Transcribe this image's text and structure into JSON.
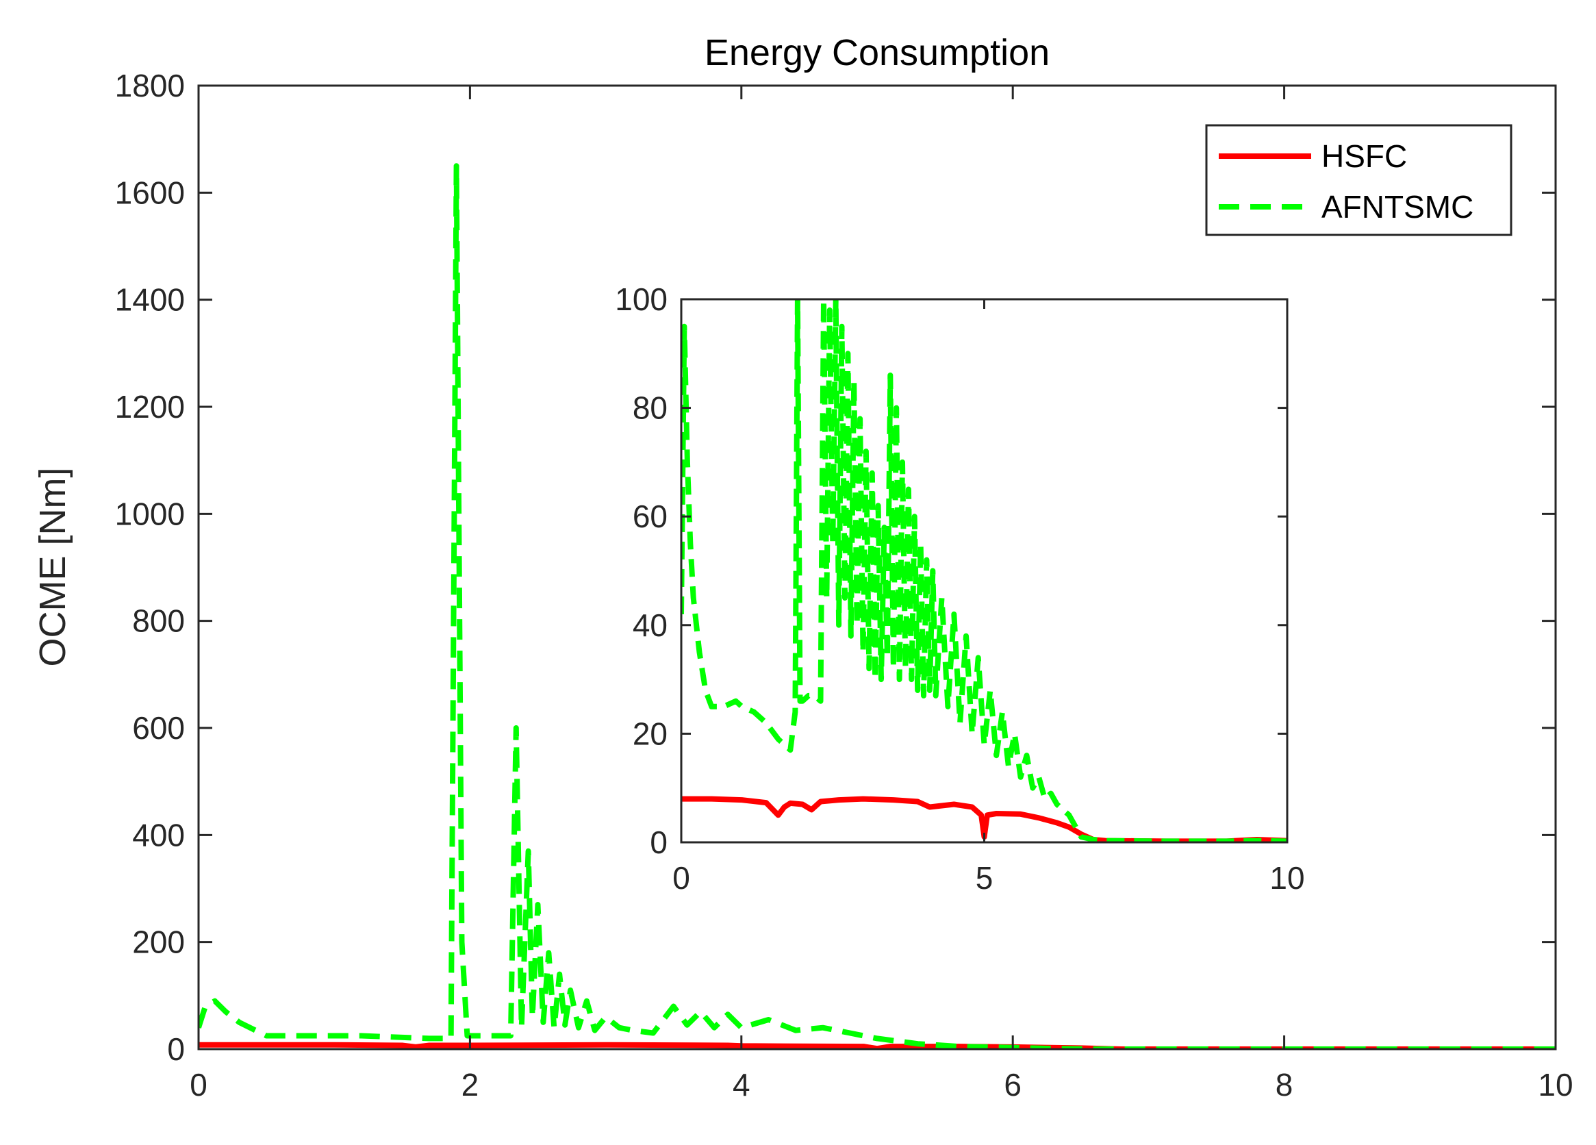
{
  "chart_data": [
    {
      "id": "main",
      "type": "line",
      "title": "Energy Consumption",
      "xlabel": "",
      "ylabel": "OCME [Nm]",
      "xlim": [
        0,
        10
      ],
      "ylim": [
        0,
        1800
      ],
      "xticks": [
        0,
        2,
        4,
        6,
        8,
        10
      ],
      "yticks": [
        0,
        200,
        400,
        600,
        800,
        1000,
        1200,
        1400,
        1600,
        1800
      ],
      "grid": false,
      "legend_position": "top-right",
      "series": [
        {
          "name": "HSFC",
          "color": "#ff0000",
          "style": "solid",
          "x": [
            0,
            1.0,
            1.5,
            1.6,
            1.7,
            2.0,
            3.0,
            3.9,
            4.0,
            4.9,
            5.0,
            5.1,
            5.6,
            6.0,
            6.5,
            6.8,
            8.0,
            9.0,
            10.0
          ],
          "y": [
            8,
            8,
            7,
            4,
            7,
            7,
            8,
            7,
            6,
            5,
            1,
            5,
            5,
            4,
            2,
            0,
            0,
            0,
            0
          ]
        },
        {
          "name": "AFNTSMC",
          "color": "#00ff00",
          "style": "dashed",
          "x": [
            0,
            0.05,
            0.12,
            0.2,
            0.3,
            0.5,
            0.8,
            1.2,
            1.7,
            1.86,
            1.9,
            1.94,
            1.98,
            2.0,
            2.1,
            2.3,
            2.34,
            2.38,
            2.43,
            2.46,
            2.5,
            2.54,
            2.58,
            2.62,
            2.66,
            2.7,
            2.74,
            2.8,
            2.86,
            2.92,
            3.0,
            3.1,
            3.2,
            3.35,
            3.5,
            3.6,
            3.7,
            3.8,
            3.9,
            4.0,
            4.2,
            4.4,
            4.6,
            4.8,
            5.0,
            5.3,
            5.6,
            6.0,
            6.3,
            6.6,
            6.8,
            8.0,
            9.0,
            10.0
          ],
          "y": [
            40,
            80,
            90,
            70,
            50,
            25,
            25,
            25,
            20,
            20,
            1650,
            200,
            25,
            25,
            25,
            25,
            600,
            40,
            370,
            60,
            270,
            50,
            180,
            40,
            140,
            45,
            110,
            40,
            90,
            35,
            60,
            40,
            35,
            30,
            80,
            45,
            70,
            40,
            65,
            40,
            55,
            35,
            40,
            30,
            20,
            10,
            5,
            3,
            1,
            0,
            0,
            0,
            0,
            0
          ]
        }
      ]
    },
    {
      "id": "inset",
      "type": "line",
      "title": "",
      "xlabel": "",
      "ylabel": "",
      "xlim": [
        0,
        10
      ],
      "ylim": [
        0,
        100
      ],
      "xticks": [
        0,
        5,
        10
      ],
      "yticks": [
        0,
        20,
        40,
        60,
        80,
        100
      ],
      "grid": false,
      "series": [
        {
          "name": "HSFC",
          "color": "#ff0000",
          "style": "solid",
          "x": [
            0,
            0.5,
            1.0,
            1.4,
            1.6,
            1.7,
            1.8,
            2.0,
            2.15,
            2.3,
            2.6,
            3.0,
            3.5,
            3.9,
            4.1,
            4.5,
            4.8,
            4.95,
            5.0,
            5.05,
            5.2,
            5.6,
            5.9,
            6.2,
            6.4,
            6.6,
            6.8,
            7.0,
            8.0,
            9.0,
            9.5,
            10.0
          ],
          "y": [
            8,
            8,
            7.8,
            7.3,
            5,
            6.5,
            7.2,
            7,
            6,
            7.5,
            7.8,
            8,
            7.8,
            7.5,
            6.5,
            7,
            6.5,
            5,
            1,
            5,
            5.3,
            5.2,
            4.5,
            3.6,
            2.8,
            1.5,
            0.5,
            0.3,
            0.2,
            0.2,
            0.5,
            0.3
          ]
        },
        {
          "name": "AFNTSMC",
          "color": "#00ff00",
          "style": "dashed",
          "x": [
            0,
            0.05,
            0.1,
            0.15,
            0.2,
            0.3,
            0.4,
            0.5,
            0.7,
            0.9,
            1.0,
            1.2,
            1.4,
            1.6,
            1.8,
            1.88,
            1.92,
            1.96,
            2.0,
            2.1,
            2.2,
            2.3,
            2.35,
            2.4,
            2.45,
            2.5,
            2.55,
            2.6,
            2.65,
            2.7,
            2.75,
            2.8,
            2.85,
            2.9,
            2.95,
            3.0,
            3.05,
            3.1,
            3.15,
            3.2,
            3.25,
            3.3,
            3.35,
            3.4,
            3.45,
            3.5,
            3.55,
            3.6,
            3.65,
            3.7,
            3.75,
            3.8,
            3.85,
            3.9,
            3.95,
            4.0,
            4.05,
            4.1,
            4.15,
            4.2,
            4.3,
            4.4,
            4.5,
            4.6,
            4.7,
            4.8,
            4.9,
            5.0,
            5.1,
            5.2,
            5.3,
            5.4,
            5.5,
            5.6,
            5.7,
            5.8,
            5.9,
            6.0,
            6.1,
            6.2,
            6.3,
            6.4,
            6.5,
            6.6,
            6.8,
            7.0,
            8.0,
            9.0,
            9.5,
            10.0
          ],
          "y": [
            42,
            95,
            70,
            55,
            45,
            35,
            28,
            25,
            25,
            26,
            25,
            24,
            22,
            19,
            17,
            24,
            100,
            26,
            26,
            27,
            27,
            26,
            100,
            45,
            98,
            55,
            100,
            40,
            95,
            45,
            90,
            38,
            85,
            40,
            78,
            35,
            72,
            32,
            68,
            30,
            62,
            30,
            58,
            34,
            86,
            32,
            80,
            30,
            70,
            32,
            65,
            30,
            60,
            28,
            55,
            27,
            52,
            28,
            50,
            27,
            45,
            25,
            42,
            22,
            38,
            20,
            34,
            18,
            28,
            16,
            24,
            14,
            20,
            12,
            16,
            10,
            12,
            8,
            9,
            7,
            6,
            5,
            3,
            1,
            0.5,
            0.3,
            0.2,
            0.2,
            0.3,
            0.2
          ]
        }
      ]
    }
  ]
}
